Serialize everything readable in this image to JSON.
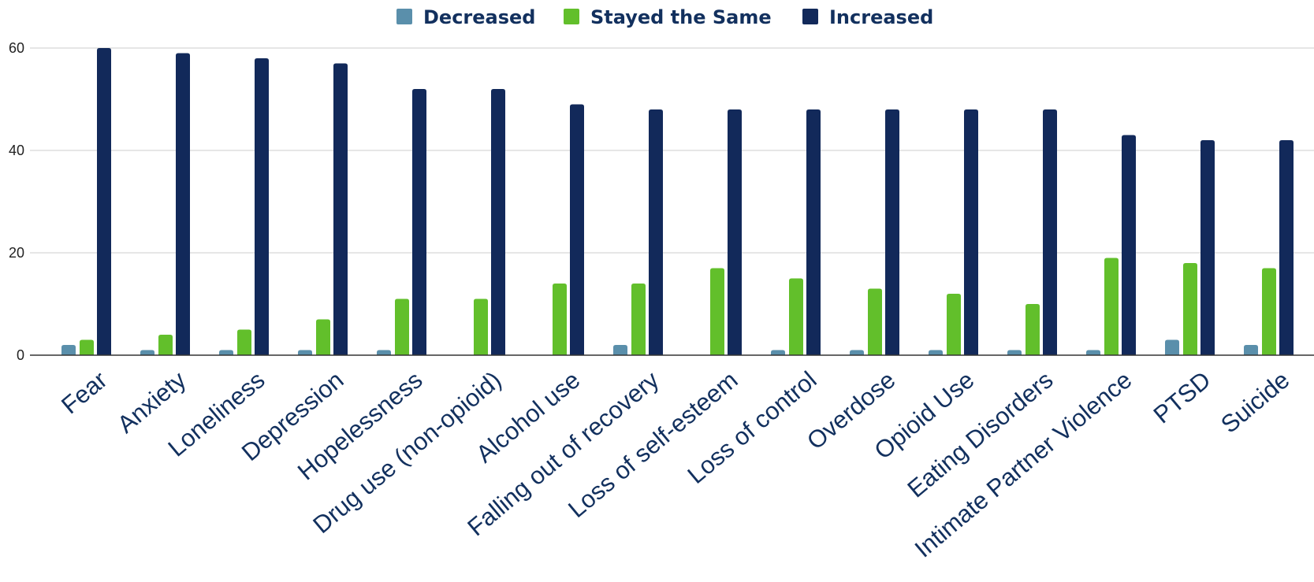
{
  "chart_data": {
    "type": "bar",
    "categories": [
      "Fear",
      "Anxiety",
      "Loneliness",
      "Depression",
      "Hopelessness",
      "Drug use (non-opioid)",
      "Alcohol use",
      "Falling out of recovery",
      "Loss of self-esteem",
      "Loss of control",
      "Overdose",
      "Opioid Use",
      "Eating Disorders",
      "Intimate Partner Violence",
      "PTSD",
      "Suicide"
    ],
    "series": [
      {
        "name": "Decreased",
        "color": "#5a8fab",
        "values": [
          2,
          1,
          1,
          1,
          1,
          0,
          0,
          2,
          0,
          1,
          1,
          1,
          1,
          1,
          3,
          2
        ]
      },
      {
        "name": "Stayed the Same",
        "color": "#62bf2b",
        "values": [
          3,
          4,
          5,
          7,
          11,
          11,
          14,
          14,
          17,
          15,
          13,
          12,
          10,
          19,
          18,
          17
        ]
      },
      {
        "name": "Increased",
        "color": "#12295a",
        "values": [
          60,
          59,
          58,
          57,
          52,
          52,
          49,
          48,
          48,
          48,
          48,
          48,
          48,
          43,
          42,
          42
        ]
      }
    ],
    "yticks": [
      "0",
      "20",
      "40",
      "60"
    ],
    "ylim": [
      0,
      60
    ],
    "grid": true,
    "legend_position": "top",
    "title": "",
    "xlabel": "",
    "ylabel": ""
  }
}
